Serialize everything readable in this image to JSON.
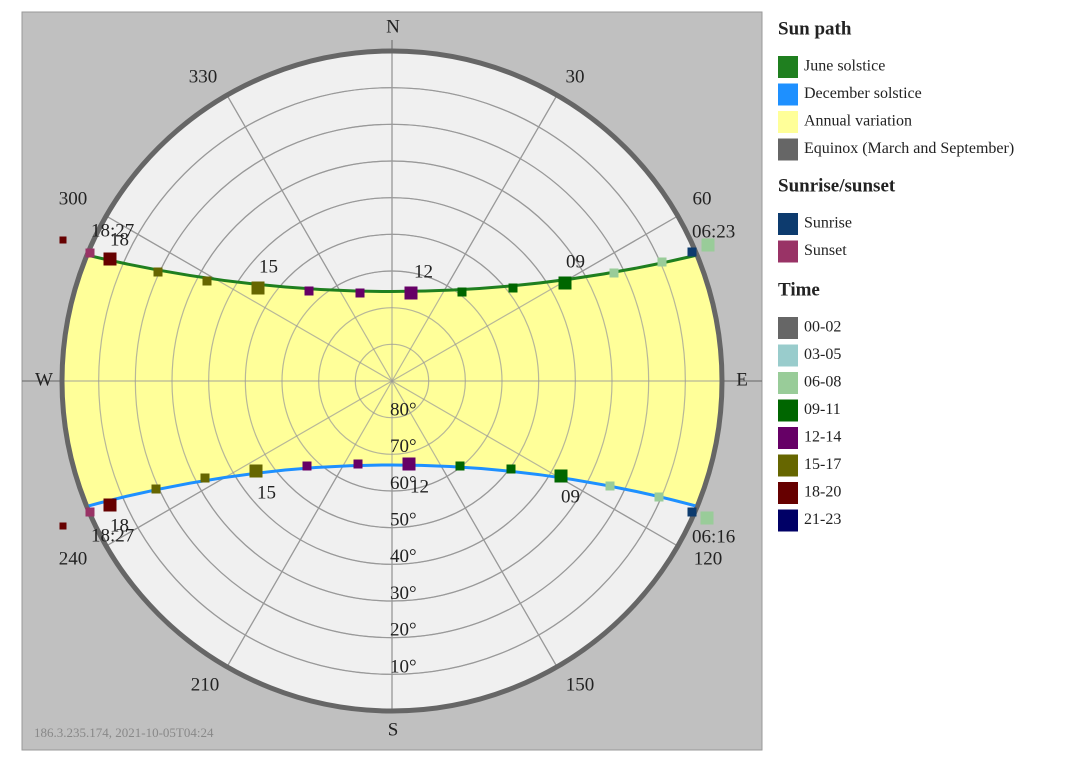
{
  "plot": {
    "directions": {
      "north": "N",
      "east": "E",
      "south": "S",
      "west": "W"
    },
    "azimuth_labels": [
      "30",
      "60",
      "120",
      "150",
      "210",
      "240",
      "300",
      "330"
    ],
    "elevation_labels": [
      "80°",
      "70°",
      "60°",
      "50°",
      "40°",
      "30°",
      "20°",
      "10°"
    ],
    "june_labels": [
      "18:27",
      "18",
      "15",
      "12",
      "09",
      "06:23"
    ],
    "december_labels": [
      "18",
      "18:27",
      "15",
      "12",
      "09",
      "06:16"
    ],
    "footer": "186.3.235.174, 2021-10-05T04:24"
  },
  "legend": {
    "sun_path": {
      "title": "Sun path",
      "items": [
        {
          "label": "June solstice",
          "color": "#1f7f1f"
        },
        {
          "label": "December solstice",
          "color": "#1e90ff"
        },
        {
          "label": "Annual variation",
          "color": "#ffff99"
        },
        {
          "label": "Equinox (March and September)",
          "color": "#666666"
        }
      ]
    },
    "sunrise_sunset": {
      "title": "Sunrise/sunset",
      "items": [
        {
          "label": "Sunrise",
          "color": "#0d3b6e"
        },
        {
          "label": "Sunset",
          "color": "#993366"
        }
      ]
    },
    "time": {
      "title": "Time",
      "items": [
        {
          "label": "00-02",
          "color": "#666666"
        },
        {
          "label": "03-05",
          "color": "#99cccc"
        },
        {
          "label": "06-08",
          "color": "#99cc99"
        },
        {
          "label": "09-11",
          "color": "#006600"
        },
        {
          "label": "12-14",
          "color": "#660066"
        },
        {
          "label": "15-17",
          "color": "#666600"
        },
        {
          "label": "18-20",
          "color": "#660000"
        },
        {
          "label": "21-23",
          "color": "#000066"
        }
      ]
    }
  }
}
